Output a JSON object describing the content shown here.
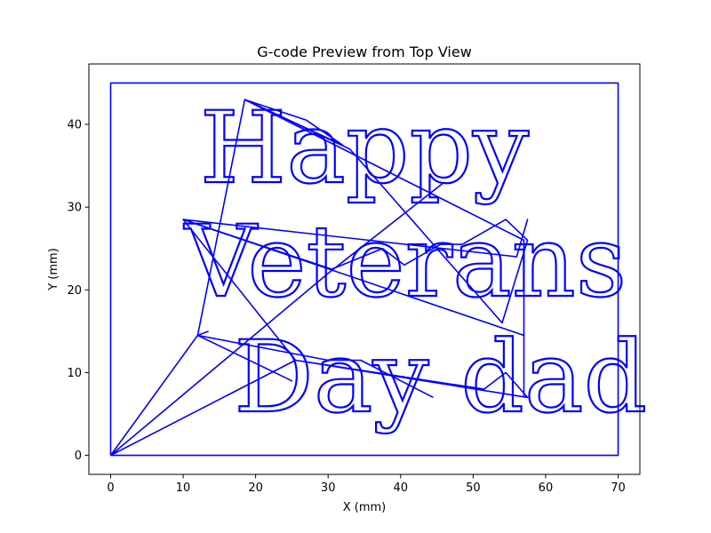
{
  "chart_data": {
    "type": "line",
    "title": "G-code Preview from Top View",
    "xlabel": "X (mm)",
    "ylabel": "Y (mm)",
    "xlim": [
      -3,
      73
    ],
    "ylim": [
      -2.3,
      47.3
    ],
    "xticks": [
      0,
      10,
      20,
      30,
      40,
      50,
      60,
      70
    ],
    "yticks": [
      0,
      10,
      20,
      30,
      40
    ],
    "grid": false,
    "line_color": "#0000ff",
    "text_lines": [
      {
        "text": "Happy",
        "x_center": 35,
        "y_base": 33
      },
      {
        "text": "Veterans",
        "x_center": 40.7,
        "y_base": 19.3
      },
      {
        "text": "Day dad",
        "x_center": 45.5,
        "y_base": 5.3
      }
    ],
    "border": {
      "x": [
        0,
        70,
        70,
        0,
        0
      ],
      "y": [
        0,
        0,
        45,
        45,
        0
      ]
    },
    "travel_moves": [
      {
        "x": [
          0,
          12,
          25,
          12,
          0
        ],
        "y": [
          0,
          14.5,
          9,
          14.5,
          0
        ]
      },
      {
        "x": [
          0,
          30,
          46
        ],
        "y": [
          0,
          22,
          33
        ]
      },
      {
        "x": [
          0,
          25.5,
          51.5,
          54.5,
          57.5,
          25.5,
          10,
          56,
          57.5,
          56,
          10,
          30.5
        ],
        "y": [
          0,
          11.5,
          8,
          10,
          7,
          11.5,
          28.5,
          24,
          28.5,
          24,
          28.5,
          22.5
        ]
      },
      {
        "x": [
          30.5,
          37.5,
          40.5,
          45.5,
          48.5,
          54.5,
          57.5,
          54,
          33,
          18.5,
          12,
          13.5
        ],
        "y": [
          22.5,
          25,
          23,
          25.5,
          25.5,
          28.5,
          26,
          16,
          37,
          43,
          14.5,
          15
        ]
      },
      {
        "x": [
          18.5,
          32,
          27,
          18.5
        ],
        "y": [
          43,
          37.5,
          40.5,
          43
        ]
      },
      {
        "x": [
          18.5,
          57,
          57
        ],
        "y": [
          43,
          26,
          14.5
        ]
      },
      {
        "x": [
          10,
          57,
          57
        ],
        "y": [
          28.5,
          14.5,
          7
        ]
      },
      {
        "x": [
          12,
          30,
          34.5,
          44.5
        ],
        "y": [
          14.5,
          11.5,
          11.5,
          7
        ]
      }
    ]
  }
}
